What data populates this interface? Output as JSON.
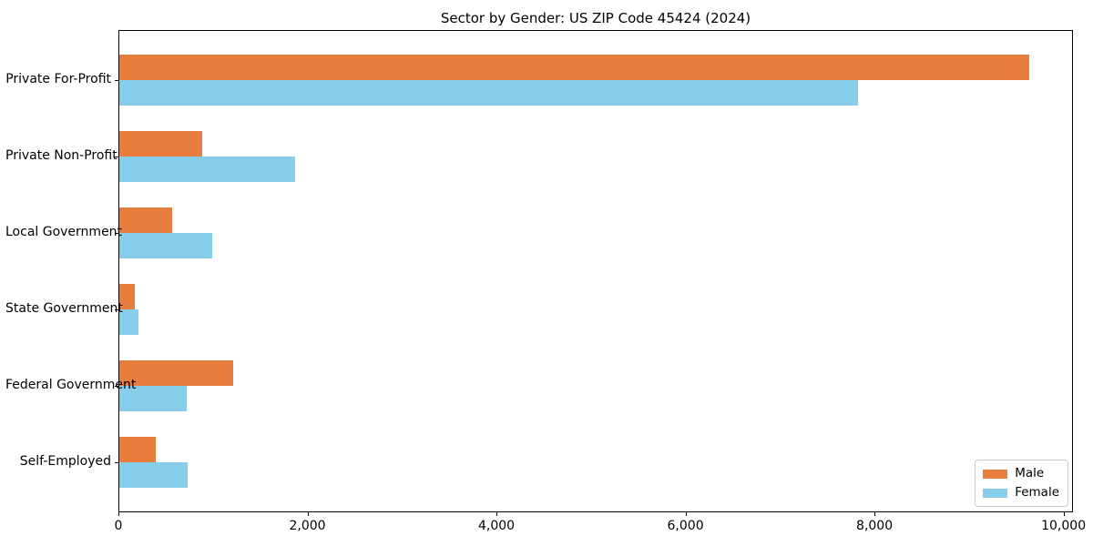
{
  "title": "Sector by Gender: US ZIP Code 45424 (2024)",
  "chart_data": {
    "type": "bar",
    "orientation": "horizontal",
    "title": "Sector by Gender: US ZIP Code 45424 (2024)",
    "categories": [
      "Private For-Profit",
      "Private Non-Profit",
      "Local Government",
      "State Government",
      "Federal Government",
      "Self-Employed"
    ],
    "series": [
      {
        "name": "Male",
        "color": "#e87d3d",
        "values": [
          9630,
          875,
          560,
          165,
          1205,
          385
        ]
      },
      {
        "name": "Female",
        "color": "#87ceeb",
        "values": [
          7820,
          1860,
          980,
          205,
          715,
          720
        ]
      }
    ],
    "xlabel": "",
    "ylabel": "",
    "xlim": [
      0,
      10100
    ],
    "xticks": [
      0,
      2000,
      4000,
      6000,
      8000,
      10000
    ],
    "xtick_labels": [
      "0",
      "2,000",
      "4,000",
      "6,000",
      "8,000",
      "10,000"
    ],
    "grid": false,
    "legend_position": "lower right"
  }
}
